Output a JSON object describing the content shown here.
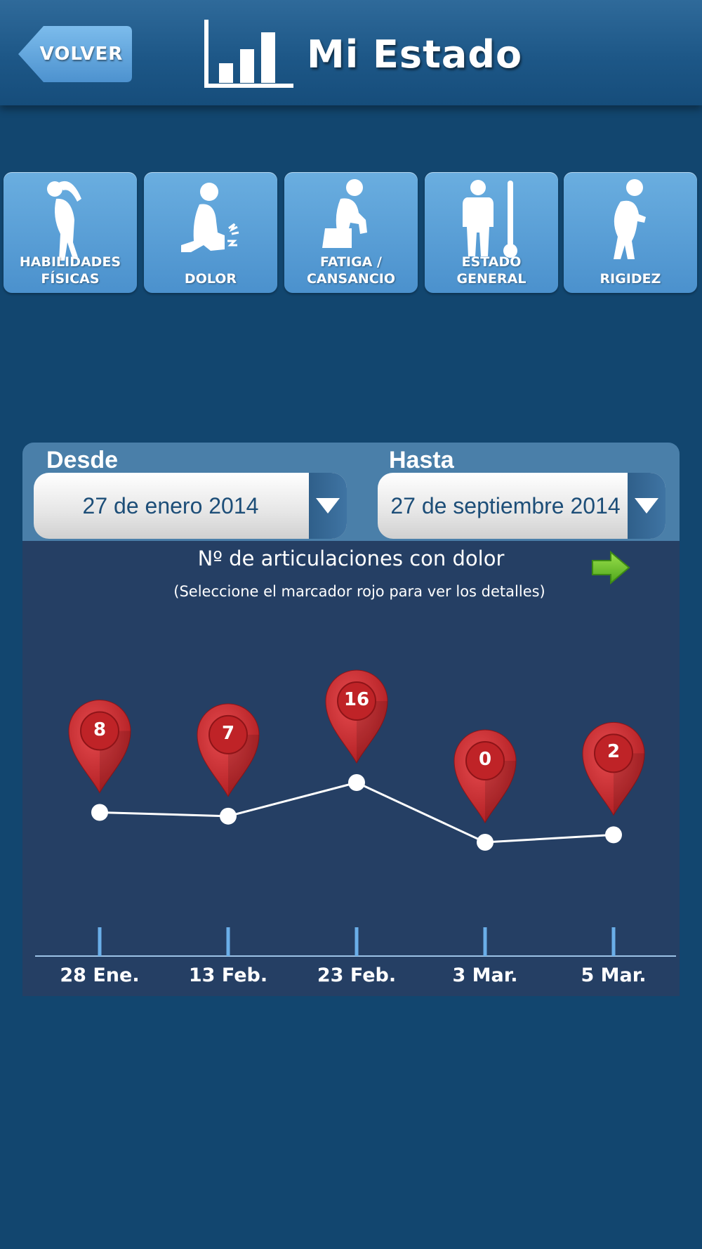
{
  "header": {
    "back_label": "VOLVER",
    "title": "Mi Estado",
    "title_icon": "bar-chart-icon"
  },
  "categories": [
    {
      "label": "HABILIDADES\nFÍSICAS",
      "icon": "stretching-person-icon"
    },
    {
      "label": "DOLOR",
      "icon": "knee-pain-person-icon"
    },
    {
      "label": "FATIGA /\nCANSANCIO",
      "icon": "tired-person-icon"
    },
    {
      "label": "ESTADO GENERAL",
      "icon": "person-thermometer-icon"
    },
    {
      "label": "RIGIDEZ",
      "icon": "back-stiffness-person-icon"
    }
  ],
  "date_range": {
    "from_label": "Desde",
    "from_value": "27 de enero 2014",
    "to_label": "Hasta",
    "to_value": "27 de septiembre 2014"
  },
  "chart_data": {
    "type": "line",
    "title": "Nº de articulaciones con dolor",
    "subtitle": "(Seleccione el marcador rojo para ver los detalles)",
    "categories": [
      "28 Ene.",
      "13 Feb.",
      "23 Feb.",
      "3 Mar.",
      "5 Mar."
    ],
    "values": [
      8,
      7,
      16,
      0,
      2
    ],
    "ylim": [
      0,
      16
    ],
    "marker_color": "#c8282c",
    "line_color": "#ffffff"
  },
  "colors": {
    "background": "#12466f",
    "tile": "#5a9fd7",
    "chart_background": "#253f64",
    "next_arrow": "#6cc52e"
  },
  "next_icon": "green-arrow-right-icon"
}
